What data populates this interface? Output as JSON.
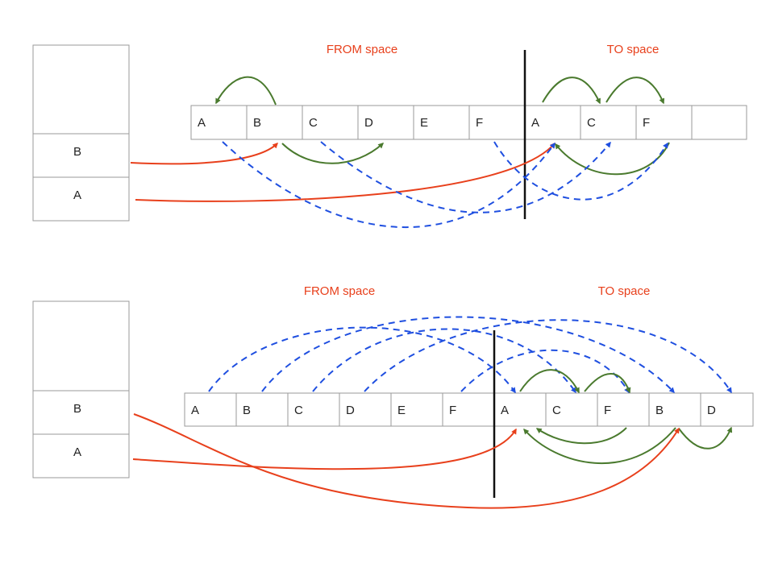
{
  "colors": {
    "text": "#222222",
    "box_border": "#9a9a9a",
    "space_label": "#e8401c",
    "root_pointer": "#e8401c",
    "object_reference": "#4a7a2e",
    "forwarding_pointer": "#1f4fe0",
    "divider": "#111111"
  },
  "diagram_top": {
    "from_label": "FROM space",
    "to_label": "TO space",
    "stack": [
      "",
      "B",
      "A"
    ],
    "heap": [
      "A",
      "B",
      "C",
      "D",
      "E",
      "F",
      "A",
      "C",
      "F",
      ""
    ]
  },
  "diagram_bottom": {
    "from_label": "FROM space",
    "to_label": "TO space",
    "stack": [
      "",
      "B",
      "A"
    ],
    "heap": [
      "A",
      "B",
      "C",
      "D",
      "E",
      "F",
      "A",
      "C",
      "F",
      "B",
      "D"
    ]
  }
}
